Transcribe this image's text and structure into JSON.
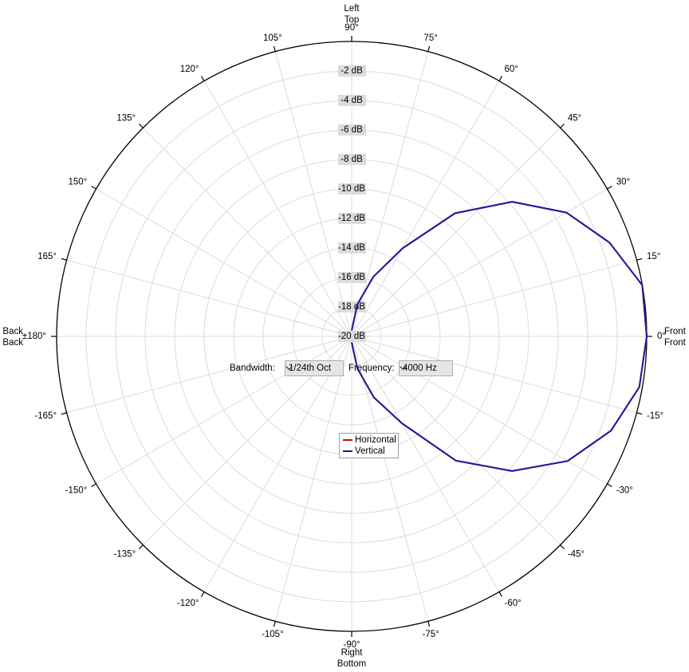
{
  "chart_data": {
    "type": "polar",
    "angle_axis_labels": {
      "top": [
        {
          "text": "Left",
          "color": "#d00000"
        },
        {
          "text": "Top",
          "color": "#1c1ca0"
        }
      ],
      "bottom": [
        {
          "text": "Right",
          "color": "#d00000"
        },
        {
          "text": "Bottom",
          "color": "#1c1ca0"
        }
      ],
      "right": [
        {
          "text": "Front",
          "color": "#d00000"
        },
        {
          "text": "Front",
          "color": "#1c1ca0"
        }
      ],
      "left": [
        {
          "text": "Back",
          "color": "#d00000"
        },
        {
          "text": "Back",
          "color": "#1c1ca0"
        }
      ]
    },
    "angles": [
      -90,
      -80,
      -70,
      -60,
      -50,
      -40,
      -30,
      -20,
      -10,
      0,
      10,
      20,
      30,
      40,
      50,
      60,
      70,
      80,
      90
    ],
    "series": [
      {
        "name": "Horizontal",
        "color": "#e00000",
        "values": [
          -19.6,
          -17.8,
          -15.6,
          -13.2,
          -9.0,
          -5.8,
          -3.1,
          -1.3,
          -0.2,
          0,
          0,
          -1.4,
          -3.2,
          -5.8,
          -9.1,
          -13.1,
          -15.7,
          -17.8,
          -19.6
        ]
      },
      {
        "name": "Vertical",
        "color": "#1c1ca0",
        "values": [
          -19.6,
          -17.8,
          -15.6,
          -13.2,
          -9.0,
          -5.8,
          -3.1,
          -1.3,
          -0.2,
          0,
          0,
          -1.4,
          -3.2,
          -5.8,
          -9.1,
          -13.1,
          -15.7,
          -17.8,
          -19.6
        ]
      }
    ],
    "rlim": [
      -20,
      0
    ],
    "rticks": [
      {
        "value": -2,
        "label": "-2 dB"
      },
      {
        "value": -4,
        "label": "-4 dB"
      },
      {
        "value": -6,
        "label": "-6 dB"
      },
      {
        "value": -8,
        "label": "-8 dB"
      },
      {
        "value": -10,
        "label": "-10 dB"
      },
      {
        "value": -12,
        "label": "-12 dB"
      },
      {
        "value": -14,
        "label": "-14 dB"
      },
      {
        "value": -16,
        "label": "-16 dB"
      },
      {
        "value": -18,
        "label": "-18 dB"
      },
      {
        "value": -20,
        "label": "-20 dB"
      }
    ],
    "angle_ticks": [
      {
        "value": 0,
        "label": "0°"
      },
      {
        "value": 15,
        "label": "15°"
      },
      {
        "value": 30,
        "label": "30°"
      },
      {
        "value": 45,
        "label": "45°"
      },
      {
        "value": 60,
        "label": "60°"
      },
      {
        "value": 75,
        "label": "75°"
      },
      {
        "value": 90,
        "label": "90°"
      },
      {
        "value": 105,
        "label": "105°"
      },
      {
        "value": 120,
        "label": "120°"
      },
      {
        "value": 135,
        "label": "135°"
      },
      {
        "value": 150,
        "label": "150°"
      },
      {
        "value": 165,
        "label": "165°"
      },
      {
        "value": 180,
        "label": "±180°"
      },
      {
        "value": -165,
        "label": "-165°"
      },
      {
        "value": -150,
        "label": "-150°"
      },
      {
        "value": -135,
        "label": "-135°"
      },
      {
        "value": -120,
        "label": "-120°"
      },
      {
        "value": -105,
        "label": "-105°"
      },
      {
        "value": -90,
        "label": "-90°"
      },
      {
        "value": -75,
        "label": "-75°"
      },
      {
        "value": -60,
        "label": "-60°"
      },
      {
        "value": -45,
        "label": "-45°"
      },
      {
        "value": -30,
        "label": "-30°"
      },
      {
        "value": -15,
        "label": "-15°"
      }
    ],
    "grid": true,
    "controls": {
      "bandwidth_label": "Bandwidth:",
      "bandwidth_value": "1/24th Oct",
      "frequency_label": "Frequency:",
      "frequency_value": "4000 Hz"
    }
  }
}
